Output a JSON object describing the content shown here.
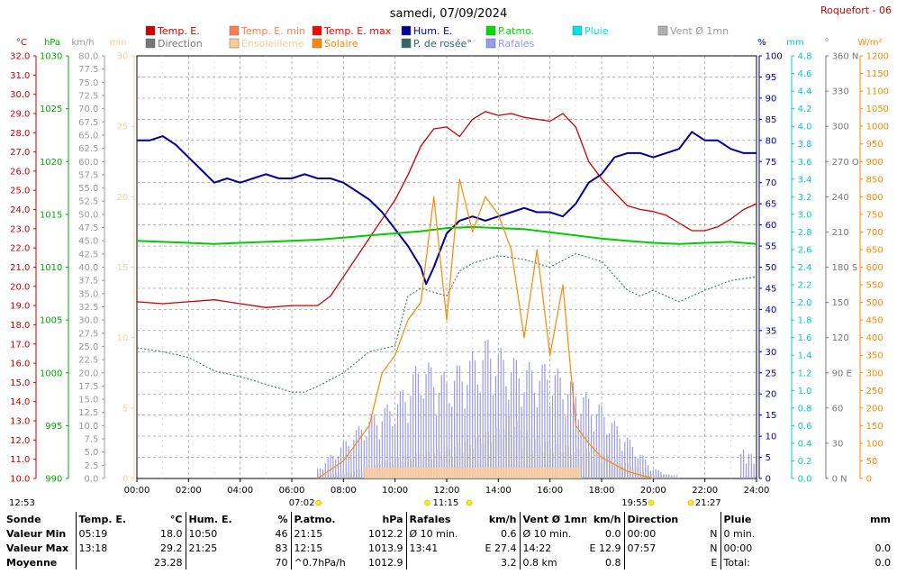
{
  "title": "samedi, 07/09/2024",
  "station": "Roquefort - 06",
  "legend": [
    {
      "label": "Temp. E.",
      "color": "#cc0000"
    },
    {
      "label": "Temp. E. min",
      "color": "#ff7f50"
    },
    {
      "label": "Temp. E. max",
      "color": "#ff0000"
    },
    {
      "label": "Hum. E.",
      "color": "#000099"
    },
    {
      "label": "P.atmo.",
      "color": "#00dd00"
    },
    {
      "label": "Pluie",
      "color": "#00e5e5"
    },
    {
      "label": "Vent Ø 1mn",
      "color": "#b0b0b0"
    },
    {
      "label": "Direction",
      "color": "#777777"
    },
    {
      "label": "Ensoleilleme",
      "color": "#ffcc99"
    },
    {
      "label": "Solaire",
      "color": "#ff8800"
    },
    {
      "label": "P. de rosée°",
      "color": "#336666"
    },
    {
      "label": "Rafales",
      "color": "#9999ee"
    }
  ],
  "axes": {
    "temp": {
      "unit": "°C",
      "color": "#cc0000",
      "ticks": [
        "32.0",
        "31.0",
        "30.0",
        "29.0",
        "28.0",
        "27.0",
        "26.0",
        "25.0",
        "24.0",
        "23.0",
        "22.0",
        "21.0",
        "20.0",
        "19.0",
        "18.0",
        "17.0",
        "16.0",
        "15.0",
        "14.0",
        "13.0",
        "12.0",
        "11.0",
        "10.0"
      ]
    },
    "press": {
      "unit": "hPa",
      "color": "#00aa00",
      "ticks": [
        "1030",
        "1025",
        "1020",
        "1015",
        "1010",
        "1005",
        "1000",
        "995",
        "990"
      ]
    },
    "wind": {
      "unit": "km/h",
      "color": "#999999",
      "ticks": [
        "80.0",
        "77.5",
        "75.0",
        "72.5",
        "70.0",
        "67.5",
        "65.0",
        "62.5",
        "60.0",
        "57.5",
        "55.0",
        "52.5",
        "50.0",
        "47.5",
        "45.0",
        "42.5",
        "40.0",
        "37.5",
        "35.0",
        "32.5",
        "30.0",
        "27.5",
        "25.0",
        "22.5",
        "20.0",
        "17.5",
        "15.0",
        "12.5",
        "10.0",
        "7.5",
        "5.0",
        "2.5",
        "0.0"
      ]
    },
    "min": {
      "unit": "min",
      "color": "#ffcc99",
      "ticks": [
        "30",
        "25",
        "20",
        "15",
        "10",
        "5",
        "0"
      ]
    },
    "hum": {
      "unit": "%",
      "color": "#000099",
      "ticks": [
        "100",
        "95",
        "90",
        "85",
        "80",
        "75",
        "70",
        "65",
        "60",
        "55",
        "50",
        "45",
        "40",
        "35",
        "30",
        "25",
        "20",
        "15",
        "10",
        "5",
        "0"
      ]
    },
    "rain": {
      "unit": "mm",
      "color": "#00cccc",
      "ticks": [
        "4.8",
        "4.6",
        "4.4",
        "4.2",
        "4.0",
        "3.8",
        "3.6",
        "3.4",
        "3.2",
        "3.0",
        "2.8",
        "2.6",
        "2.4",
        "2.2",
        "2.0",
        "1.8",
        "1.6",
        "1.4",
        "1.2",
        "1.0",
        "0.8",
        "0.6",
        "0.4",
        "0.2",
        "0.0"
      ]
    },
    "dir": {
      "unit": "°",
      "color": "#777777",
      "ticks": [
        "360 N",
        "330",
        "300",
        "270 O",
        "240",
        "210",
        "180 S",
        "150",
        "120",
        "90 E",
        "60",
        "30",
        "0 N"
      ]
    },
    "solar": {
      "unit": "W/m²",
      "color": "#ff8800",
      "ticks": [
        "1200",
        "1150",
        "1100",
        "1050",
        "1000",
        "950",
        "900",
        "850",
        "800",
        "750",
        "700",
        "650",
        "600",
        "550",
        "500",
        "450",
        "400",
        "350",
        "300",
        "250",
        "200",
        "150",
        "100",
        "50",
        "0"
      ]
    },
    "x_ticks": [
      "00:00",
      "02:00",
      "04:00",
      "06:00",
      "08:00",
      "10:00",
      "12:00",
      "14:00",
      "16:00",
      "18:00",
      "20:00",
      "22:00",
      "24:00"
    ]
  },
  "markers": [
    {
      "label": "12:53",
      "h": 12.88,
      "color": "#ffee00"
    },
    {
      "label": "07:02",
      "h": 7.03,
      "color": "#ffee00"
    },
    {
      "label": "11:15",
      "h": 11.25,
      "color": "#ffee00"
    },
    {
      "label": "19:55",
      "h": 19.92,
      "color": "#ffee00"
    },
    {
      "label": "21:27",
      "h": 21.45,
      "color": "#ffee00"
    }
  ],
  "chart_data": {
    "type": "line",
    "title": "samedi, 07/09/2024",
    "x_unit": "hours",
    "series": [
      {
        "name": "Temp. E.",
        "axis": "temp",
        "points": [
          [
            0,
            19.2
          ],
          [
            1,
            19.1
          ],
          [
            2,
            19.2
          ],
          [
            3,
            19.3
          ],
          [
            4,
            19.1
          ],
          [
            5,
            18.9
          ],
          [
            6,
            19.0
          ],
          [
            7,
            19.0
          ],
          [
            7.5,
            19.5
          ],
          [
            8,
            20.5
          ],
          [
            8.5,
            21.5
          ],
          [
            9,
            22.5
          ],
          [
            9.5,
            23.5
          ],
          [
            10,
            24.5
          ],
          [
            10.5,
            25.8
          ],
          [
            11,
            27.3
          ],
          [
            11.5,
            28.2
          ],
          [
            12,
            28.3
          ],
          [
            12.5,
            27.8
          ],
          [
            13,
            28.7
          ],
          [
            13.5,
            29.1
          ],
          [
            14,
            28.9
          ],
          [
            14.5,
            29.0
          ],
          [
            15,
            28.8
          ],
          [
            15.5,
            28.7
          ],
          [
            16,
            28.6
          ],
          [
            16.5,
            29.0
          ],
          [
            17,
            28.3
          ],
          [
            17.5,
            26.5
          ],
          [
            18,
            25.6
          ],
          [
            18.5,
            24.9
          ],
          [
            19,
            24.2
          ],
          [
            19.5,
            24.0
          ],
          [
            20,
            23.9
          ],
          [
            20.5,
            23.7
          ],
          [
            21,
            23.3
          ],
          [
            21.5,
            22.9
          ],
          [
            22,
            22.9
          ],
          [
            22.5,
            23.1
          ],
          [
            23,
            23.5
          ],
          [
            23.5,
            24.0
          ],
          [
            24,
            24.3
          ]
        ]
      },
      {
        "name": "Hum. E.",
        "axis": "hum",
        "points": [
          [
            0,
            80
          ],
          [
            0.5,
            80
          ],
          [
            1,
            81
          ],
          [
            1.5,
            79
          ],
          [
            2,
            76
          ],
          [
            2.5,
            73
          ],
          [
            3,
            70
          ],
          [
            3.5,
            71
          ],
          [
            4,
            70
          ],
          [
            4.5,
            71
          ],
          [
            5,
            72
          ],
          [
            5.5,
            71
          ],
          [
            6,
            71
          ],
          [
            6.5,
            72
          ],
          [
            7,
            71
          ],
          [
            7.5,
            71
          ],
          [
            8,
            70
          ],
          [
            8.5,
            68
          ],
          [
            9,
            66
          ],
          [
            9.5,
            63
          ],
          [
            10,
            59
          ],
          [
            10.5,
            55
          ],
          [
            11,
            50
          ],
          [
            11.2,
            46
          ],
          [
            11.5,
            50
          ],
          [
            12,
            58
          ],
          [
            12.5,
            61
          ],
          [
            13,
            62
          ],
          [
            13.5,
            61
          ],
          [
            14,
            62
          ],
          [
            14.5,
            63
          ],
          [
            15,
            64
          ],
          [
            15.5,
            63
          ],
          [
            16,
            63
          ],
          [
            16.5,
            62
          ],
          [
            17,
            65
          ],
          [
            17.5,
            70
          ],
          [
            18,
            72
          ],
          [
            18.5,
            76
          ],
          [
            19,
            77
          ],
          [
            19.5,
            77
          ],
          [
            20,
            76
          ],
          [
            20.5,
            77
          ],
          [
            21,
            78
          ],
          [
            21.5,
            82
          ],
          [
            22,
            80
          ],
          [
            22.5,
            80
          ],
          [
            23,
            78
          ],
          [
            23.5,
            77
          ],
          [
            24,
            77
          ]
        ]
      },
      {
        "name": "P.atmo.",
        "axis": "press",
        "points": [
          [
            0,
            1012.5
          ],
          [
            1,
            1012.4
          ],
          [
            2,
            1012.3
          ],
          [
            3,
            1012.2
          ],
          [
            4,
            1012.3
          ],
          [
            5,
            1012.4
          ],
          [
            6,
            1012.5
          ],
          [
            7,
            1012.6
          ],
          [
            8,
            1012.8
          ],
          [
            9,
            1013.0
          ],
          [
            10,
            1013.2
          ],
          [
            11,
            1013.4
          ],
          [
            12,
            1013.7
          ],
          [
            13,
            1013.8
          ],
          [
            14,
            1013.7
          ],
          [
            15,
            1013.6
          ],
          [
            16,
            1013.3
          ],
          [
            17,
            1013.0
          ],
          [
            18,
            1012.7
          ],
          [
            19,
            1012.5
          ],
          [
            20,
            1012.3
          ],
          [
            21,
            1012.2
          ],
          [
            22,
            1012.3
          ],
          [
            23,
            1012.4
          ],
          [
            24,
            1012.2
          ]
        ]
      },
      {
        "name": "P. de rosée°",
        "axis": "temp",
        "points": [
          [
            0,
            16.8
          ],
          [
            1,
            16.6
          ],
          [
            2,
            16.3
          ],
          [
            3,
            15.6
          ],
          [
            4,
            15.3
          ],
          [
            5,
            14.9
          ],
          [
            6,
            14.5
          ],
          [
            6.5,
            14.5
          ],
          [
            7,
            14.8
          ],
          [
            8,
            15.5
          ],
          [
            9,
            16.6
          ],
          [
            10,
            16.9
          ],
          [
            10.5,
            19.5
          ],
          [
            11,
            19.9
          ],
          [
            12,
            19.5
          ],
          [
            12.5,
            20.8
          ],
          [
            13,
            21.2
          ],
          [
            14,
            21.6
          ],
          [
            15,
            21.4
          ],
          [
            16,
            21.0
          ],
          [
            17,
            21.7
          ],
          [
            18,
            21.3
          ],
          [
            19,
            19.8
          ],
          [
            19.5,
            19.5
          ],
          [
            20,
            19.8
          ],
          [
            21,
            19.2
          ],
          [
            22,
            19.8
          ],
          [
            23,
            20.3
          ],
          [
            24,
            20.5
          ]
        ]
      },
      {
        "name": "Solaire",
        "axis": "solar",
        "points": [
          [
            7,
            0
          ],
          [
            8,
            50
          ],
          [
            9,
            150
          ],
          [
            9.5,
            300
          ],
          [
            10,
            350
          ],
          [
            10.5,
            450
          ],
          [
            11,
            500
          ],
          [
            11.5,
            800
          ],
          [
            12,
            450
          ],
          [
            12.5,
            850
          ],
          [
            13,
            700
          ],
          [
            13.5,
            800
          ],
          [
            14,
            750
          ],
          [
            14.5,
            650
          ],
          [
            15,
            400
          ],
          [
            15.5,
            650
          ],
          [
            16,
            350
          ],
          [
            16.5,
            550
          ],
          [
            17,
            150
          ],
          [
            17.5,
            100
          ],
          [
            18,
            60
          ],
          [
            19,
            20
          ],
          [
            20,
            0
          ]
        ]
      },
      {
        "name": "Rafales",
        "axis": "wind",
        "points": [
          [
            0,
            0
          ],
          [
            6,
            0
          ],
          [
            7,
            2
          ],
          [
            8,
            7
          ],
          [
            9,
            12
          ],
          [
            10,
            15
          ],
          [
            11,
            23
          ],
          [
            12,
            20
          ],
          [
            13,
            24
          ],
          [
            13.7,
            27.4
          ],
          [
            14,
            25
          ],
          [
            15,
            22
          ],
          [
            16,
            22
          ],
          [
            17,
            18
          ],
          [
            18,
            14
          ],
          [
            19,
            8
          ],
          [
            20,
            2
          ],
          [
            21,
            0
          ],
          [
            22,
            0
          ],
          [
            23,
            0
          ],
          [
            23.5,
            6
          ],
          [
            24,
            4
          ]
        ]
      },
      {
        "name": "Vent Ø 1mn",
        "axis": "wind",
        "points": [
          [
            0,
            0
          ],
          [
            8,
            1
          ],
          [
            10,
            4
          ],
          [
            12,
            6
          ],
          [
            13,
            8
          ],
          [
            14,
            10
          ],
          [
            14.4,
            12.9
          ],
          [
            15,
            9
          ],
          [
            16,
            7
          ],
          [
            18,
            5
          ],
          [
            20,
            1
          ],
          [
            24,
            0
          ]
        ]
      }
    ],
    "stats": {
      "headers": [
        "Sonde",
        "Temp. E.",
        "°C",
        "Hum. E.",
        "%",
        "P.atmo.",
        "hPa",
        "Rafales",
        "km/h",
        "Vent Ø 1mn",
        "km/h",
        "Direction",
        "",
        "Pluie",
        "mm"
      ],
      "rows": [
        [
          "Valeur Min",
          "05:19",
          "18.0",
          "10:50",
          "46",
          "21:15",
          "1012.2",
          "Ø 10 min.",
          "0.6",
          "Ø 10 min.",
          "0.0",
          "00:00",
          "N",
          "0 min.",
          ""
        ],
        [
          "Valeur Max",
          "13:18",
          "29.2",
          "21:25",
          "83",
          "12:15",
          "1013.9",
          "13:41",
          "E 27.4",
          "14:22",
          "E 12.9",
          "07:57",
          "N",
          "00:00",
          "0.0"
        ],
        [
          "Moyenne",
          "",
          "23.28",
          "",
          "70",
          "^0.7hPa/h",
          "1012.9",
          "",
          "3.2",
          "0.8 km",
          "0.8",
          "",
          "E",
          "Total:",
          "0.0"
        ]
      ]
    }
  }
}
